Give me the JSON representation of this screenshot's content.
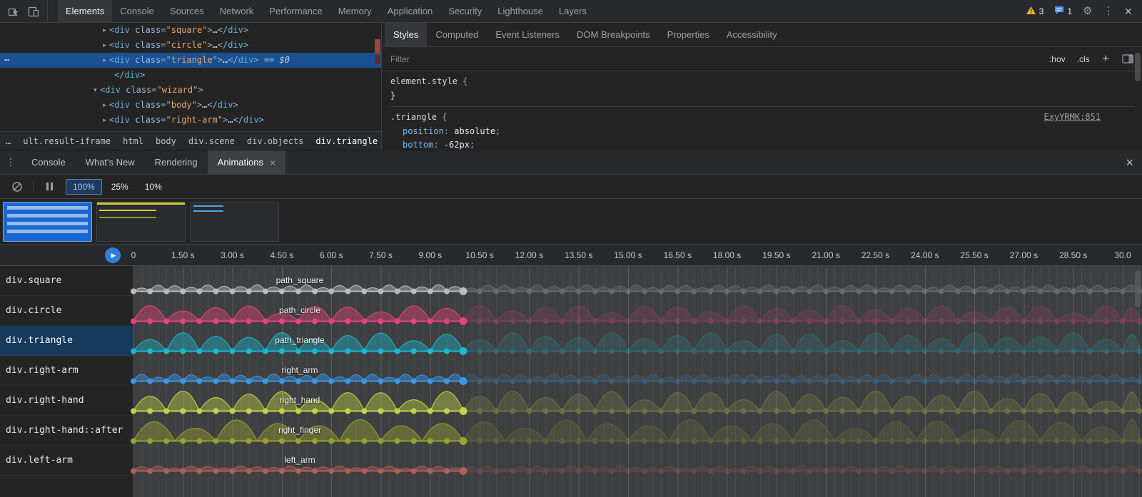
{
  "glyphs": {
    "collapsed": "▸",
    "expanded": "▾",
    "overflow": "⋯",
    "gear": "⚙",
    "kebab": "⋮",
    "close": "×",
    "play": "▶",
    "brace_open": " {",
    "brace_close": "}",
    "colon": ": ",
    "semicolon": ";"
  },
  "top_bar": {
    "tabs": [
      {
        "label": "Elements",
        "active": true
      },
      {
        "label": "Console"
      },
      {
        "label": "Sources"
      },
      {
        "label": "Network"
      },
      {
        "label": "Performance"
      },
      {
        "label": "Memory"
      },
      {
        "label": "Application"
      },
      {
        "label": "Security"
      },
      {
        "label": "Lighthouse"
      },
      {
        "label": "Layers"
      }
    ],
    "warning_count": "3",
    "message_count": "1"
  },
  "elements": {
    "tree_lines": [
      {
        "indent": 153,
        "expander": "▸",
        "tokens": [
          [
            "p",
            "<"
          ],
          [
            "t",
            "div"
          ],
          [
            "a",
            " class"
          ],
          [
            "p",
            "="
          ],
          [
            "s",
            "\"square\""
          ],
          [
            "p",
            ">"
          ],
          [
            "e",
            "…"
          ],
          [
            "p",
            "</"
          ],
          [
            "t",
            "div"
          ],
          [
            "p",
            ">"
          ]
        ]
      },
      {
        "indent": 153,
        "expander": "▸",
        "tokens": [
          [
            "p",
            "<"
          ],
          [
            "t",
            "div"
          ],
          [
            "a",
            " class"
          ],
          [
            "p",
            "="
          ],
          [
            "s",
            "\"circle\""
          ],
          [
            "p",
            ">"
          ],
          [
            "e",
            "…"
          ],
          [
            "p",
            "</"
          ],
          [
            "t",
            "div"
          ],
          [
            "p",
            ">"
          ]
        ]
      },
      {
        "indent": 153,
        "expander": "▸",
        "selected": true,
        "tokens": [
          [
            "p",
            "<"
          ],
          [
            "t",
            "div"
          ],
          [
            "a",
            " class"
          ],
          [
            "p",
            "="
          ],
          [
            "s",
            "\"triangle\""
          ],
          [
            "p",
            ">"
          ],
          [
            "e",
            "…"
          ],
          [
            "p",
            "</"
          ],
          [
            "t",
            "div"
          ],
          [
            "p",
            ">"
          ],
          [
            "f",
            " == $0"
          ]
        ]
      },
      {
        "indent": 160,
        "tokens": [
          [
            "p",
            "</"
          ],
          [
            "t",
            "div"
          ],
          [
            "p",
            ">"
          ]
        ]
      },
      {
        "indent": 140,
        "expander": "▾",
        "tokens": [
          [
            "p",
            "<"
          ],
          [
            "t",
            "div"
          ],
          [
            "a",
            " class"
          ],
          [
            "p",
            "="
          ],
          [
            "s",
            "\"wizard\""
          ],
          [
            "p",
            ">"
          ]
        ]
      },
      {
        "indent": 153,
        "expander": "▸",
        "tokens": [
          [
            "p",
            "<"
          ],
          [
            "t",
            "div"
          ],
          [
            "a",
            " class"
          ],
          [
            "p",
            "="
          ],
          [
            "s",
            "\"body\""
          ],
          [
            "p",
            ">"
          ],
          [
            "e",
            "…"
          ],
          [
            "p",
            "</"
          ],
          [
            "t",
            "div"
          ],
          [
            "p",
            ">"
          ]
        ]
      },
      {
        "indent": 153,
        "expander": "▸",
        "tokens": [
          [
            "p",
            "<"
          ],
          [
            "t",
            "div"
          ],
          [
            "a",
            " class"
          ],
          [
            "p",
            "="
          ],
          [
            "s",
            "\"right-arm\""
          ],
          [
            "p",
            ">"
          ],
          [
            "e",
            "…"
          ],
          [
            "p",
            "</"
          ],
          [
            "t",
            "div"
          ],
          [
            "p",
            ">"
          ]
        ]
      }
    ],
    "breadcrumbs": [
      {
        "label": "…"
      },
      {
        "label": "ult.result-iframe"
      },
      {
        "label": "html"
      },
      {
        "label": "body"
      },
      {
        "label": "div.scene"
      },
      {
        "label": "div.objects"
      },
      {
        "label": "div.triangle",
        "active": true
      }
    ]
  },
  "styles": {
    "tabs": [
      {
        "label": "Styles",
        "active": true
      },
      {
        "label": "Computed"
      },
      {
        "label": "Event Listeners"
      },
      {
        "label": "DOM Breakpoints"
      },
      {
        "label": "Properties"
      },
      {
        "label": "Accessibility"
      }
    ],
    "filter_placeholder": "Filter",
    "toggle_hov": ":hov",
    "toggle_cls": ".cls",
    "add_rule": "+",
    "rules": [
      {
        "selector": "element.style",
        "props": [],
        "show_close": true,
        "link": ""
      },
      {
        "selector": ".triangle",
        "props": [
          {
            "name": "position",
            "value": "absolute"
          },
          {
            "name": "bottom",
            "value": "-62px"
          }
        ],
        "show_close": false,
        "link": "ExyYRMK:851"
      }
    ]
  },
  "drawer": {
    "tabs": [
      {
        "label": "Console"
      },
      {
        "label": "What's New"
      },
      {
        "label": "Rendering"
      },
      {
        "label": "Animations",
        "active": true,
        "closable": true
      }
    ]
  },
  "animations": {
    "rates": [
      {
        "label": "100%",
        "active": true
      },
      {
        "label": "25%"
      },
      {
        "label": "10%"
      }
    ],
    "previews": [
      {
        "selected": true,
        "art": "stripes"
      },
      {
        "art": "lines"
      },
      {
        "art": "small"
      }
    ],
    "ruler": [
      "0",
      "1.50 s",
      "3.00 s",
      "4.50 s",
      "6.00 s",
      "7.50 s",
      "9.00 s",
      "10.50 s",
      "12.00 s",
      "13.50 s",
      "15.00 s",
      "16.50 s",
      "18.00 s",
      "19.50 s",
      "21.00 s",
      "22.50 s",
      "24.00 s",
      "25.50 s",
      "27.00 s",
      "28.50 s",
      "30.0"
    ],
    "rows": [
      {
        "selector": "div.square",
        "label": "path_square",
        "color": "#b8bcbf",
        "hump_h": 9,
        "hump_w": 0.5,
        "dot_s": 0.5
      },
      {
        "selector": "div.circle",
        "label": "path_circle",
        "color": "#e8437a",
        "hump_h": 22,
        "hump_w": 1.0,
        "dot_s": 0.5
      },
      {
        "selector": "div.triangle",
        "label": "path_triangle",
        "color": "#1ab8ce",
        "hump_h": 26,
        "hump_w": 1.0,
        "dot_s": 0.5,
        "selected": true
      },
      {
        "selector": "div.right-arm",
        "label": "right_arm",
        "color": "#3b97e8",
        "hump_h": 10,
        "hump_w": 0.5,
        "dot_s": 0.5
      },
      {
        "selector": "div.right-hand",
        "label": "right_hand",
        "color": "#c3d445",
        "hump_h": 28,
        "hump_w": 1.0,
        "dot_s": 0.5
      },
      {
        "selector": "div.right-hand::after",
        "label": "right_finger",
        "color": "#9aa12f",
        "hump_h": 30,
        "hump_w": 1.25,
        "dot_s": 0.5
      },
      {
        "selector": "div.left-arm",
        "label": "left_arm",
        "color": "#b0605a",
        "hump_h": 7,
        "hump_w": 0.5,
        "dot_s": 0.5
      }
    ]
  }
}
